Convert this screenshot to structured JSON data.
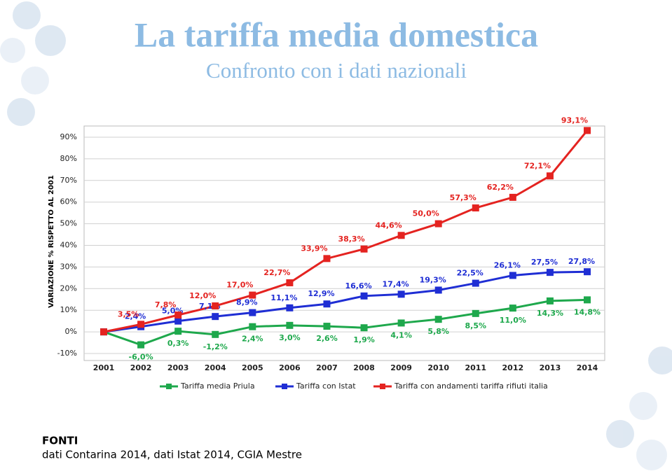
{
  "chart_data": {
    "type": "line",
    "title": "La tariffa media domestica",
    "subtitle": "Confronto con i dati nazionali",
    "y_label": "VARIAZIONE % RISPETTO AL 2001",
    "categories": [
      "2001",
      "2002",
      "2003",
      "2004",
      "2005",
      "2006",
      "2007",
      "2008",
      "2009",
      "2010",
      "2011",
      "2012",
      "2013",
      "2014"
    ],
    "series": [
      {
        "name": "Tariffa media Priula",
        "color": "#1ea84c",
        "values": [
          0,
          -6.0,
          0.3,
          -1.2,
          2.4,
          3.0,
          2.6,
          1.9,
          4.1,
          5.8,
          8.5,
          11.0,
          14.3,
          14.8
        ],
        "value_labels": [
          null,
          "-6,0%",
          "0,3%",
          "-1,2%",
          "2,4%",
          "3,0%",
          "2,6%",
          "1,9%",
          "4,1%",
          "5,8%",
          "8,5%",
          "11,0%",
          "14,3%",
          "14,8%"
        ]
      },
      {
        "name": "Tariffa con Istat",
        "color": "#1f2ed4",
        "values": [
          0,
          2.4,
          5.0,
          7.1,
          8.9,
          11.1,
          12.9,
          16.6,
          17.4,
          19.3,
          22.5,
          26.1,
          27.5,
          27.8
        ],
        "value_labels": [
          null,
          "2,4%",
          "5,0%",
          "7,1%",
          "8,9%",
          "11,1%",
          "12,9%",
          "16,6%",
          "17,4%",
          "19,3%",
          "22,5%",
          "26,1%",
          "27,5%",
          "27,8%"
        ]
      },
      {
        "name": "Tariffa con andamenti tariffa rifiuti italia",
        "color": "#e42320",
        "values": [
          0,
          3.5,
          7.8,
          12.0,
          17.0,
          22.7,
          33.9,
          38.3,
          44.6,
          50.0,
          57.3,
          62.2,
          72.1,
          93.1
        ],
        "value_labels": [
          null,
          "3,5%",
          "7,8%",
          "12,0%",
          "17,0%",
          "22,7%",
          "33,9%",
          "38,3%",
          "44,6%",
          "50,0%",
          "57,3%",
          "62,2%",
          "72,1%",
          "93,1%"
        ]
      }
    ],
    "ylim": [
      -10,
      90
    ],
    "yticks": [
      {
        "value": -10,
        "label": "-10%"
      },
      {
        "value": 0,
        "label": "0%"
      },
      {
        "value": 10,
        "label": "10%"
      },
      {
        "value": 20,
        "label": "20%"
      },
      {
        "value": 30,
        "label": "30%"
      },
      {
        "value": 40,
        "label": "40%"
      },
      {
        "value": 50,
        "label": "50%"
      },
      {
        "value": 60,
        "label": "60%"
      },
      {
        "value": 70,
        "label": "70%"
      },
      {
        "value": 80,
        "label": "80%"
      },
      {
        "value": 90,
        "label": "90%"
      }
    ],
    "grid": true,
    "legend": "bottom"
  },
  "footer": {
    "heading": "FONTI",
    "text": "dati Contarina 2014, dati Istat 2014,  CGIA Mestre"
  }
}
